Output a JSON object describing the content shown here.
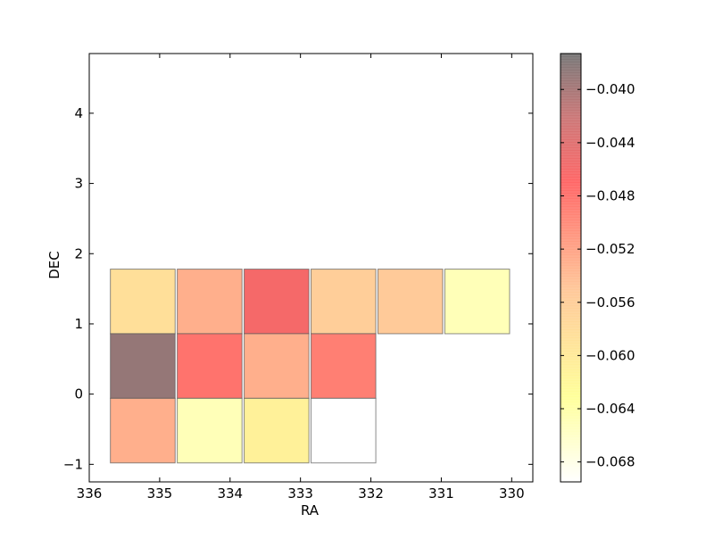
{
  "chart_data": {
    "type": "heatmap",
    "xlabel": "RA",
    "ylabel": "DEC",
    "xlim": [
      336,
      329.7
    ],
    "ylim": [
      -1.25,
      4.85
    ],
    "x_ticks": [
      336,
      335,
      334,
      333,
      332,
      331,
      330
    ],
    "y_ticks": [
      -1,
      0,
      1,
      2,
      3,
      4
    ],
    "grid": false,
    "colormap": "hot_r (alpha 0.4)",
    "colorbar": {
      "range": [
        -0.0695,
        -0.0373
      ],
      "ticks": [
        -0.04,
        -0.044,
        -0.048,
        -0.052,
        -0.056,
        -0.06,
        -0.064,
        -0.068
      ],
      "tick_labels": [
        "−0.040",
        "−0.044",
        "−0.048",
        "−0.052",
        "−0.056",
        "−0.060",
        "−0.064",
        "−0.068"
      ]
    },
    "cells": [
      {
        "ra_min": 335.7,
        "ra_max": 334.78,
        "dec_min": 0.86,
        "dec_max": 1.78,
        "value": -0.0585
      },
      {
        "ra_min": 334.75,
        "ra_max": 333.83,
        "dec_min": 0.86,
        "dec_max": 1.78,
        "value": -0.053
      },
      {
        "ra_min": 333.8,
        "ra_max": 332.88,
        "dec_min": 0.86,
        "dec_max": 1.78,
        "value": -0.046
      },
      {
        "ra_min": 332.85,
        "ra_max": 331.93,
        "dec_min": 0.86,
        "dec_max": 1.78,
        "value": -0.056
      },
      {
        "ra_min": 331.9,
        "ra_max": 330.98,
        "dec_min": 0.86,
        "dec_max": 1.78,
        "value": -0.0555
      },
      {
        "ra_min": 330.95,
        "ra_max": 330.03,
        "dec_min": 0.86,
        "dec_max": 1.78,
        "value": -0.065
      },
      {
        "ra_min": 335.7,
        "ra_max": 334.78,
        "dec_min": -0.06,
        "dec_max": 0.86,
        "value": -0.039
      },
      {
        "ra_min": 334.75,
        "ra_max": 333.83,
        "dec_min": -0.06,
        "dec_max": 0.86,
        "value": -0.048
      },
      {
        "ra_min": 333.8,
        "ra_max": 332.88,
        "dec_min": -0.06,
        "dec_max": 0.86,
        "value": -0.053
      },
      {
        "ra_min": 332.85,
        "ra_max": 331.93,
        "dec_min": -0.06,
        "dec_max": 0.86,
        "value": -0.049
      },
      {
        "ra_min": 335.7,
        "ra_max": 334.78,
        "dec_min": -0.98,
        "dec_max": -0.06,
        "value": -0.053
      },
      {
        "ra_min": 334.75,
        "ra_max": 333.83,
        "dec_min": -0.98,
        "dec_max": -0.06,
        "value": -0.065
      },
      {
        "ra_min": 333.8,
        "ra_max": 332.88,
        "dec_min": -0.98,
        "dec_max": -0.06,
        "value": -0.061
      },
      {
        "ra_min": 332.85,
        "ra_max": 331.93,
        "dec_min": -0.98,
        "dec_max": -0.06,
        "value": -0.0695
      }
    ]
  }
}
